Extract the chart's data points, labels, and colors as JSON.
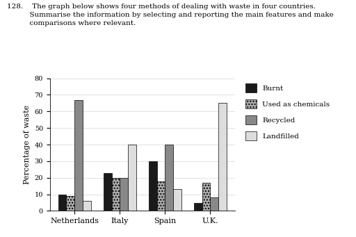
{
  "countries": [
    "Netherlands",
    "Italy",
    "Spain",
    "U.K."
  ],
  "methods": [
    "Burnt",
    "Used as chemicals",
    "Recycled",
    "Landfilled"
  ],
  "values": {
    "Netherlands": [
      10,
      9,
      67,
      6
    ],
    "Italy": [
      23,
      20,
      20,
      40
    ],
    "Spain": [
      30,
      18,
      40,
      13
    ],
    "U.K.": [
      5,
      17,
      8,
      65
    ]
  },
  "colors": [
    "#1a1a1a",
    "#aaaaaa",
    "#888888",
    "#dddddd"
  ],
  "hatches": [
    null,
    "....",
    null,
    "==="
  ],
  "ylabel": "Percentage of waste",
  "ylim": [
    0,
    80
  ],
  "yticks": [
    0,
    10,
    20,
    30,
    40,
    50,
    60,
    70,
    80
  ],
  "bar_width": 0.18,
  "background_color": "#ffffff",
  "title_line1": "128.    The graph below shows four methods of dealing with waste in four countries.",
  "title_line2": "          Summarise the information by selecting and reporting the main features and make",
  "title_line3": "          comparisons where relevant.",
  "title_fontsize": 7.5
}
